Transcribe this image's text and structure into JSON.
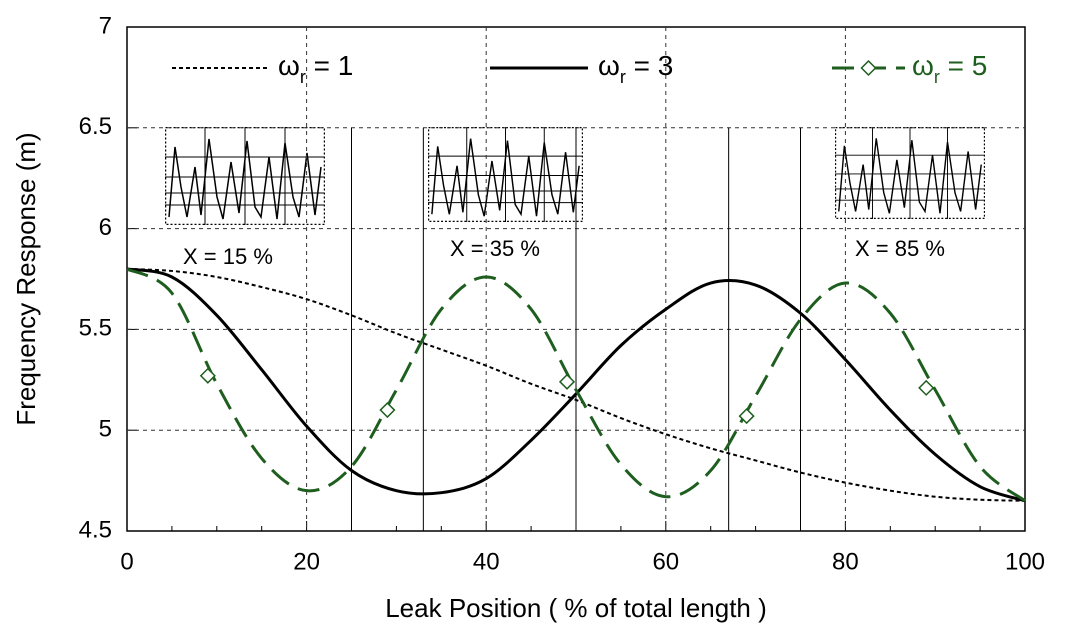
{
  "chart_data": {
    "type": "line",
    "x_label": "Leak Position ( % of total length )",
    "y_label": "Frequency Response (m)",
    "x": [
      0,
      5,
      10,
      15,
      20,
      25,
      30,
      35,
      40,
      45,
      50,
      55,
      60,
      65,
      70,
      75,
      80,
      85,
      90,
      95,
      100
    ],
    "xlim": [
      0,
      100
    ],
    "xticks": [
      0,
      20,
      40,
      60,
      80,
      100
    ],
    "ylim": [
      4.5,
      7
    ],
    "yticks": [
      4.5,
      5,
      5.5,
      6,
      6.5,
      7
    ],
    "grid": true,
    "vlines": [
      25,
      33,
      50,
      67,
      75
    ],
    "annotations": [
      "X = 15 %",
      "X = 35 %",
      "X = 85 %"
    ],
    "series": [
      {
        "name": "ωr = 1",
        "color": "#000000",
        "style": "dotted",
        "values": [
          5.8,
          5.79,
          5.76,
          5.71,
          5.65,
          5.57,
          5.48,
          5.4,
          5.32,
          5.23,
          5.15,
          5.06,
          4.98,
          4.91,
          4.85,
          4.79,
          4.74,
          4.7,
          4.67,
          4.655,
          4.65
        ]
      },
      {
        "name": "ωr = 3",
        "color": "#000000",
        "style": "solid",
        "values": [
          5.8,
          5.76,
          5.57,
          5.3,
          5.02,
          4.8,
          4.7,
          4.69,
          4.76,
          4.95,
          5.18,
          5.42,
          5.6,
          5.73,
          5.72,
          5.58,
          5.35,
          5.1,
          4.88,
          4.72,
          4.65
        ]
      },
      {
        "name": "ωr = 5",
        "color": "#1e5e1e",
        "style": "dashed",
        "values": [
          5.8,
          5.68,
          5.23,
          4.86,
          4.7,
          4.82,
          5.2,
          5.6,
          5.76,
          5.6,
          5.2,
          4.83,
          4.67,
          4.8,
          5.17,
          5.55,
          5.73,
          5.58,
          5.2,
          4.82,
          4.65
        ],
        "markers": {
          "x": [
            9,
            29,
            49,
            69,
            89
          ],
          "values": [
            5.27,
            5.1,
            5.24,
            5.07,
            5.21
          ]
        }
      }
    ]
  }
}
